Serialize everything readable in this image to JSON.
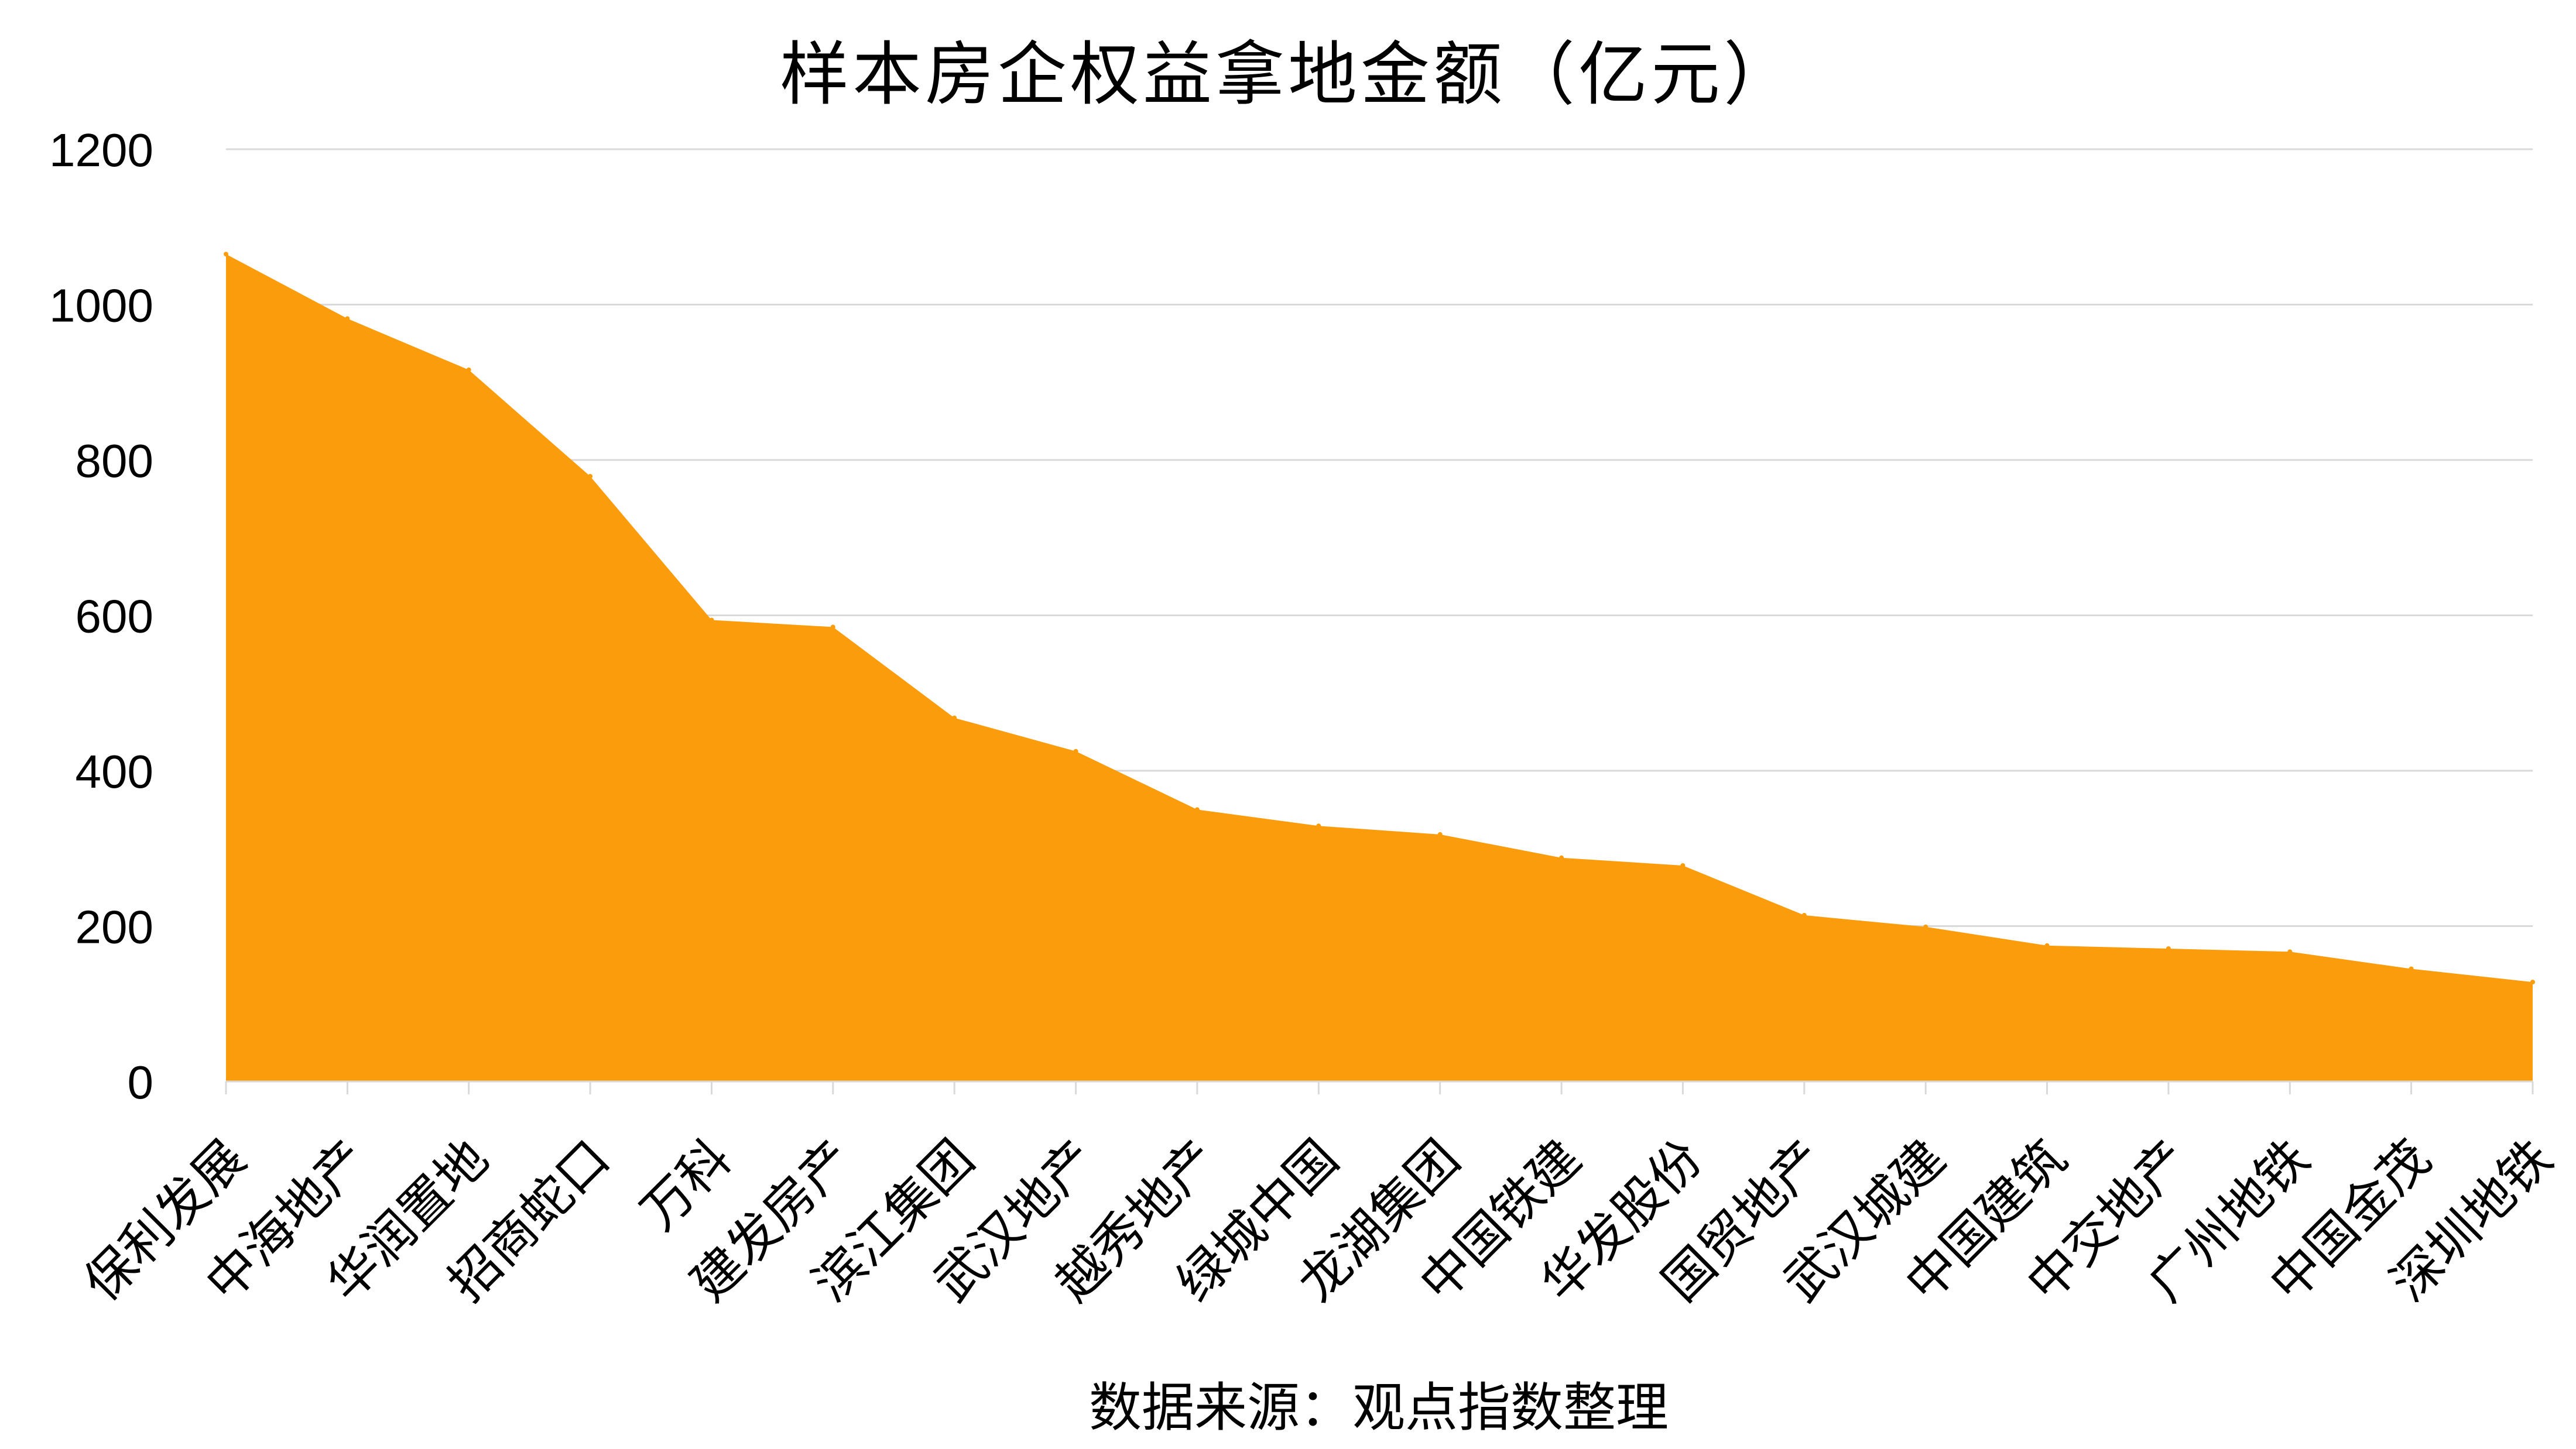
{
  "chart_data": {
    "type": "area",
    "title": "样本房企权益拿地金额（亿元）",
    "categories": [
      "保利发展",
      "中海地产",
      "华润置地",
      "招商蛇口",
      "万科",
      "建发房产",
      "滨江集团",
      "武汉地产",
      "越秀地产",
      "绿城中国",
      "龙湖集团",
      "中国铁建",
      "华发股份",
      "国贸地产",
      "武汉城建",
      "中国建筑",
      "中交地产",
      "广州地铁",
      "中国金茂",
      "深圳地铁"
    ],
    "values": [
      1065,
      982,
      916,
      779,
      594,
      585,
      468,
      425,
      350,
      329,
      318,
      288,
      278,
      214,
      199,
      175,
      171,
      167,
      145,
      128
    ],
    "ylim": [
      0,
      1200
    ],
    "yticks": [
      0,
      200,
      400,
      600,
      800,
      1000,
      1200
    ],
    "grid": true,
    "legend": "none",
    "color": "#FA9C0B",
    "grid_color": "#D9D9D9"
  },
  "source_note": "数据来源：观点指数整理"
}
